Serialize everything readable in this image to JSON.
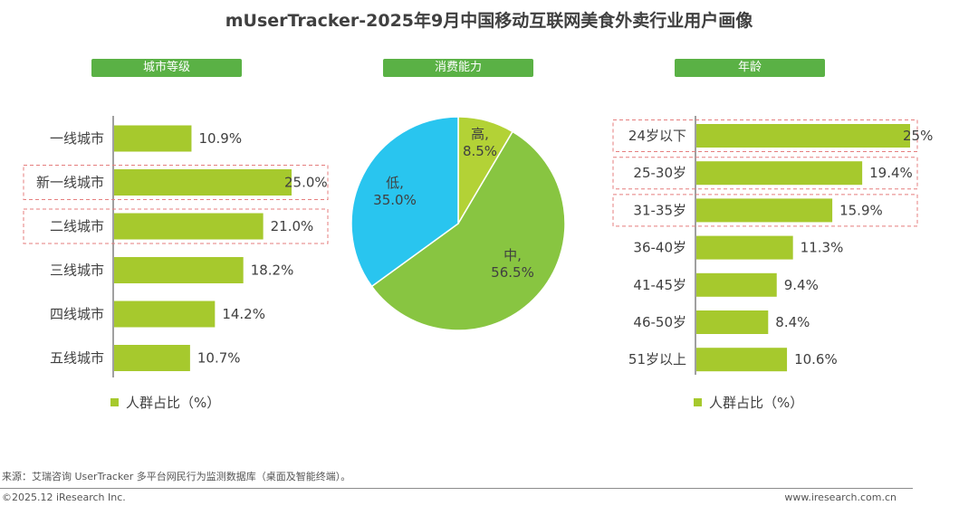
{
  "title": "mUserTracker-2025年9月中国移动互联网美食外卖行业用户画像",
  "colors": {
    "bar": "#a6c92d",
    "tag": "#5ab145",
    "pie_high": "#b3d236",
    "pie_mid": "#88c541",
    "pie_low": "#29c5ef",
    "highlight": "#e57e7e"
  },
  "sections": {
    "city": "城市等级",
    "consumption": "消费能力",
    "age": "年龄"
  },
  "legend_label": "人群占比（%）",
  "footer": {
    "source": "来源：艾瑞咨询 UserTracker 多平台网民行为监测数据库（桌面及智能终端）。",
    "copyright": "©2025.12 iResearch Inc.",
    "website": "www.iresearch.com.cn"
  },
  "chart_data": [
    {
      "type": "bar",
      "orientation": "horizontal",
      "title": "城市等级",
      "categories": [
        "一线城市",
        "新一线城市",
        "二线城市",
        "三线城市",
        "四线城市",
        "五线城市"
      ],
      "values": [
        10.9,
        25.0,
        21.0,
        18.2,
        14.2,
        10.7
      ],
      "value_labels": [
        "10.9%",
        "25.0%",
        "21.0%",
        "18.2%",
        "14.2%",
        "10.7%"
      ],
      "highlighted": [
        "新一线城市",
        "二线城市"
      ],
      "legend": "人群占比（%）"
    },
    {
      "type": "pie",
      "title": "消费能力",
      "categories": [
        "高",
        "中",
        "低"
      ],
      "values": [
        8.5,
        56.5,
        35.0
      ],
      "value_labels": [
        "8.5%",
        "56.5%",
        "35.0%"
      ]
    },
    {
      "type": "bar",
      "orientation": "horizontal",
      "title": "年龄",
      "categories": [
        "24岁以下",
        "25-30岁",
        "31-35岁",
        "36-40岁",
        "41-45岁",
        "46-50岁",
        "51岁以上"
      ],
      "values": [
        25,
        19.4,
        15.9,
        11.3,
        9.4,
        8.4,
        10.6
      ],
      "value_labels": [
        "25%",
        "19.4%",
        "15.9%",
        "11.3%",
        "9.4%",
        "8.4%",
        "10.6%"
      ],
      "highlighted": [
        "24岁以下",
        "25-30岁",
        "31-35岁"
      ],
      "legend": "人群占比（%）"
    }
  ]
}
